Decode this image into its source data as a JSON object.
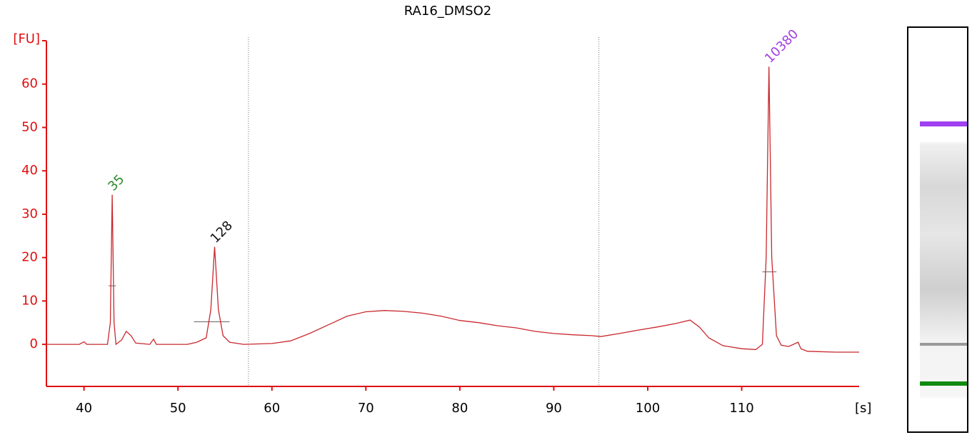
{
  "chart_data": {
    "type": "line",
    "title": "RA16_DMSO2",
    "x_label": "[s]",
    "y_label": "[FU]",
    "x": [
      36,
      39.5,
      40,
      40.3,
      42.5,
      42.8,
      43.0,
      43.2,
      43.4,
      44,
      44.5,
      45,
      45.5,
      47,
      47.4,
      47.7,
      51,
      52,
      53,
      53.5,
      53.9,
      54.3,
      54.8,
      55.5,
      57,
      60,
      62,
      64,
      66,
      68,
      70,
      72,
      74,
      76,
      78,
      80,
      82,
      84,
      86,
      88,
      90,
      92,
      94,
      95,
      97,
      99,
      101,
      103,
      104.5,
      105.5,
      106.5,
      108,
      110,
      111.5,
      112.2,
      112.6,
      112.9,
      113.2,
      113.7,
      114.2,
      115,
      116,
      116.3,
      117,
      120,
      122.5
    ],
    "values": [
      0,
      0,
      0.6,
      0,
      0,
      5,
      34.5,
      5,
      0,
      1,
      3,
      2,
      0.3,
      0,
      1.2,
      0,
      0,
      0.5,
      1.5,
      8,
      22.5,
      8,
      2,
      0.5,
      0,
      0.2,
      0.8,
      2.5,
      4.5,
      6.5,
      7.5,
      7.8,
      7.6,
      7.2,
      6.5,
      5.5,
      5,
      4.3,
      3.8,
      3,
      2.5,
      2.2,
      2,
      1.8,
      2.5,
      3.3,
      4,
      4.8,
      5.6,
      4,
      1.5,
      -0.3,
      -1,
      -1.2,
      0,
      20,
      64,
      20,
      2,
      -0.2,
      -0.5,
      0.5,
      -1,
      -1.6,
      -1.8,
      -1.8
    ],
    "color": "#c8282d",
    "xlim": [
      36,
      122.5
    ],
    "xticks": [
      40,
      50,
      60,
      70,
      80,
      90,
      100,
      110
    ],
    "ylim": [
      -9.7,
      70
    ],
    "yticks": [
      0,
      10,
      20,
      30,
      40,
      50,
      60
    ],
    "axis_color": "#e01010",
    "region_bounds": [
      57.5,
      94.8
    ],
    "peak_marks": [
      {
        "x": [
          42.6,
          43.4
        ],
        "y": 13.5
      },
      {
        "x": [
          51.7,
          55.5
        ],
        "y": 5.2
      },
      {
        "x": [
          112.2,
          113.7
        ],
        "y": 16.7
      }
    ],
    "annotations": [
      {
        "text": "35",
        "x": 43.0,
        "y": 34.5,
        "color": "#2a8a2a"
      },
      {
        "text": "128",
        "x": 53.9,
        "y": 22.5,
        "color": "#111111"
      },
      {
        "text": "10380",
        "x": 112.9,
        "y": 64,
        "color": "#a040e0"
      }
    ]
  }
}
